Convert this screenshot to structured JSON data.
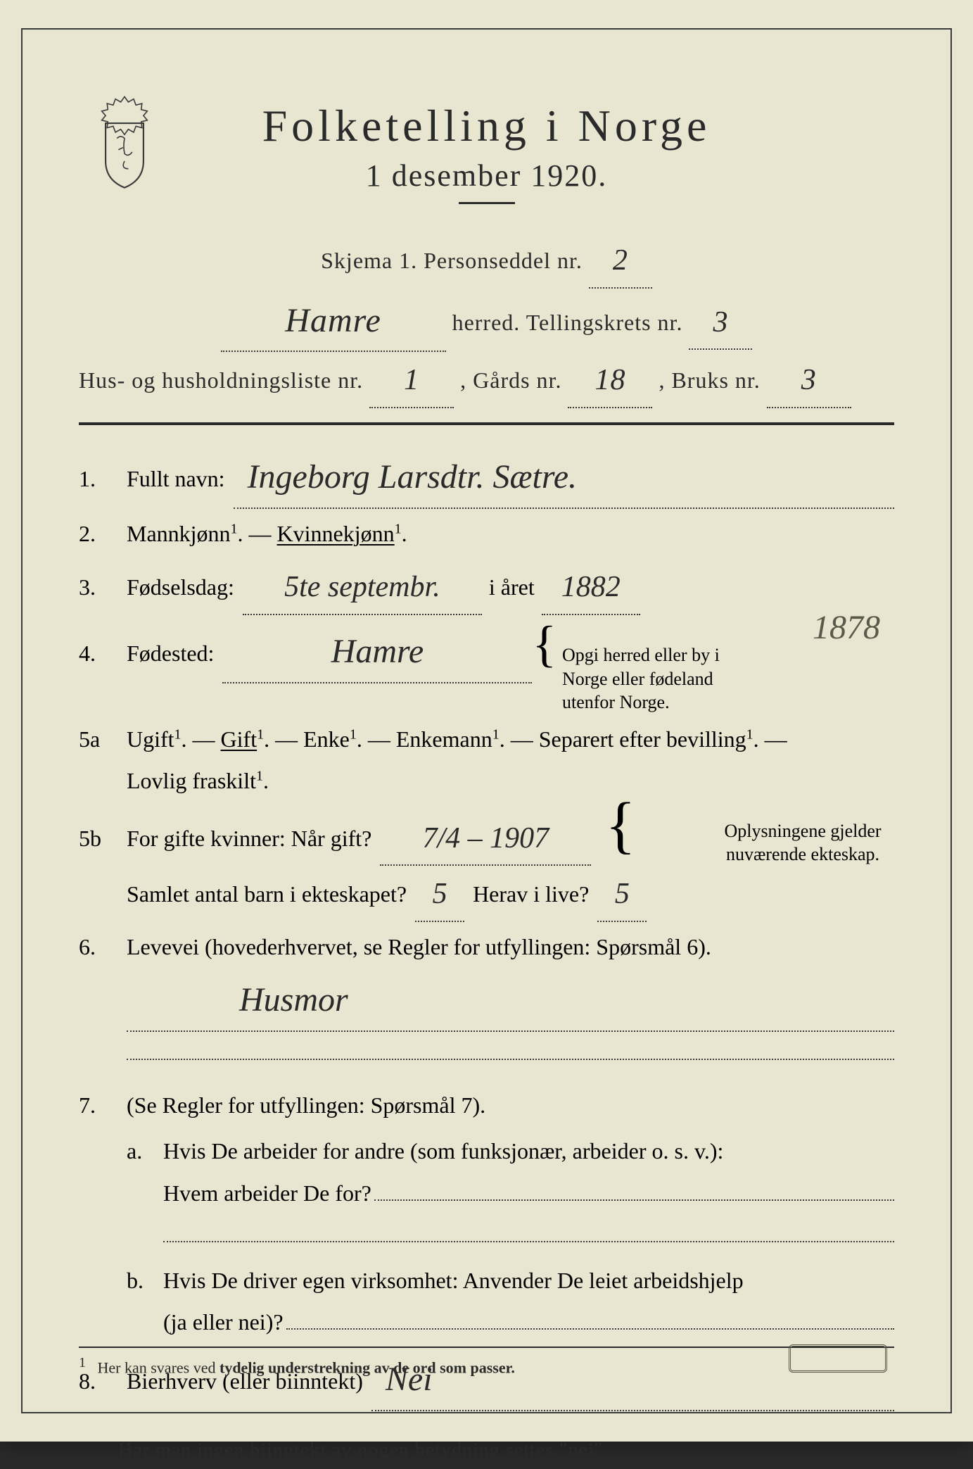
{
  "colors": {
    "paper": "#e8e5d0",
    "ink": "#2a2a2a",
    "border": "#3a3a3a",
    "faded": "#5a5a4a",
    "background": "#2a2a2a"
  },
  "header": {
    "title": "Folketelling i Norge",
    "subtitle": "1 desember 1920."
  },
  "form_meta": {
    "skjema_label": "Skjema 1.   Personseddel nr.",
    "personseddel_nr": "2",
    "herred_label": "herred.   Tellingskrets nr.",
    "herred_name": "Hamre",
    "tellingskrets_nr": "3",
    "husliste_label": "Hus- og husholdningsliste nr.",
    "husliste_nr": "1",
    "gards_label": ",  Gårds nr.",
    "gards_nr": "18",
    "bruks_label": ",  Bruks nr.",
    "bruks_nr": "3"
  },
  "q1": {
    "num": "1.",
    "label": "Fullt navn:",
    "value": "Ingeborg Larsdtr. Sætre."
  },
  "q2": {
    "num": "2.",
    "label_a": "Mannkjønn",
    "label_b": "Kvinnekjønn",
    "sup": "1",
    "dash": ". — ",
    "end": "."
  },
  "q3": {
    "num": "3.",
    "label": "Fødselsdag:",
    "day": "5te septembr.",
    "mid": "i året",
    "year": "1882"
  },
  "q4": {
    "num": "4.",
    "label": "Fødested:",
    "value": "Hamre",
    "note": "Opgi herred eller by i Norge eller fødeland utenfor Norge."
  },
  "q5a": {
    "num": "5a",
    "opts": [
      "Ugift",
      "Gift",
      "Enke",
      "Enkemann",
      "Separert efter bevilling",
      "Lovlig fraskilt"
    ],
    "sup": "1",
    "dash": ". — ",
    "end": "."
  },
  "q5b": {
    "num": "5b",
    "label1": "For gifte kvinner:  Når gift?",
    "when": "7/4 – 1907",
    "label2": "Samlet antal barn i ekteskapet?",
    "total": "5",
    "label3": "Herav i live?",
    "alive": "5",
    "note": "Oplysningene gjelder nuværende ekteskap."
  },
  "margin_note": "1878",
  "q6": {
    "num": "6.",
    "label": "Levevei (hovederhvervet, se Regler for utfyllingen:  Spørsmål 6).",
    "value": "Husmor"
  },
  "q7": {
    "num": "7.",
    "label": "(Se Regler for utfyllingen:  Spørsmål 7).",
    "a_num": "a.",
    "a_label1": "Hvis De arbeider for andre (som funksjonær, arbeider o. s. v.):",
    "a_label2": "Hvem arbeider De for?",
    "b_num": "b.",
    "b_label1": "Hvis De driver egen virksomhet:  Anvender De leiet arbeidshjelp",
    "b_label2": "(ja eller nei)?"
  },
  "q8": {
    "num": "8.",
    "label": "Bierhverv (eller biinntekt)",
    "value": "Nei"
  },
  "hint": "Har man ingen biinntekt av nogen betydning settes \"nei\".",
  "footnote": {
    "num": "1",
    "text": "Her kan svares ved tydelig understrekning av de ord som passer."
  }
}
